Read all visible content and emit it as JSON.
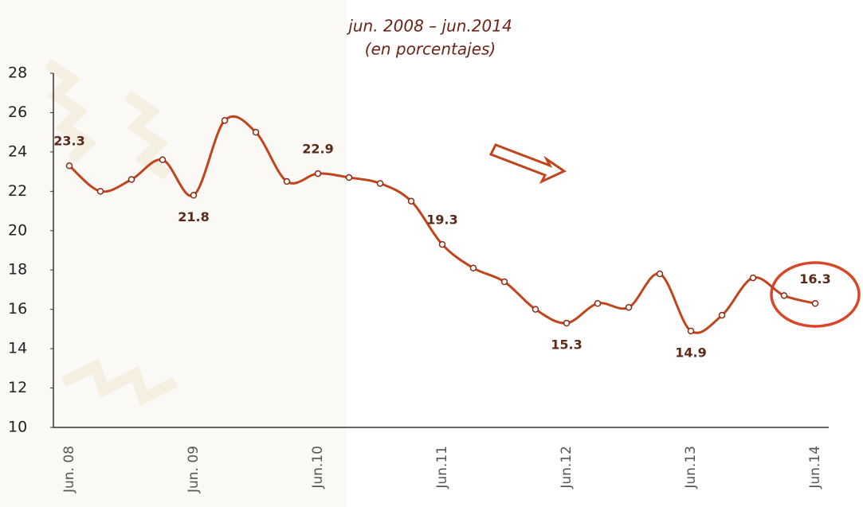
{
  "chart_data": {
    "type": "line",
    "title": "jun. 2008 – jun.2014",
    "subtitle": "(en porcentajes)",
    "categories": [
      "Jun. 08",
      null,
      null,
      null,
      "Jun. 09",
      null,
      null,
      null,
      "Jun.10",
      null,
      null,
      null,
      "Jun.11",
      null,
      null,
      null,
      "Jun.12",
      null,
      null,
      null,
      "Jun.13",
      null,
      null,
      null,
      "Jun.14"
    ],
    "series": [
      {
        "color": "#c0441c",
        "values": [
          23.3,
          22.0,
          22.6,
          23.6,
          21.8,
          25.6,
          25.0,
          22.5,
          22.9,
          22.7,
          22.4,
          21.5,
          19.3,
          18.1,
          17.4,
          16.0,
          15.3,
          16.3,
          16.1,
          17.8,
          14.9,
          15.7,
          17.6,
          16.7,
          16.3
        ],
        "value_labels": [
          "23.3",
          null,
          null,
          null,
          "21.8",
          null,
          null,
          null,
          "22.9",
          null,
          null,
          null,
          "19.3",
          null,
          null,
          null,
          "15.3",
          null,
          null,
          null,
          "14.9",
          null,
          null,
          null,
          "16.3"
        ]
      }
    ],
    "ylim": [
      10,
      28
    ],
    "yticks": [
      10,
      12,
      14,
      16,
      18,
      20,
      22,
      24,
      26,
      28
    ],
    "grid": false
  }
}
